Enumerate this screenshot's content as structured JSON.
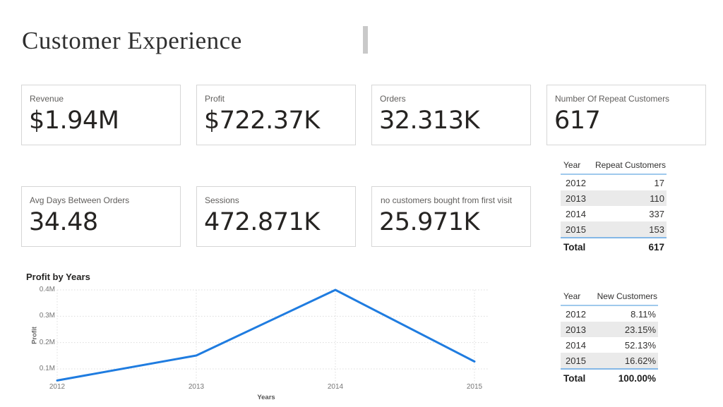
{
  "header": {
    "title": "Customer Experience"
  },
  "kpi_cards": [
    {
      "label": "Revenue",
      "value": "$1.94M"
    },
    {
      "label": "Profit",
      "value": "$722.37K"
    },
    {
      "label": "Orders",
      "value": "32.313K"
    },
    {
      "label": "Number Of Repeat Customers",
      "value": "617"
    },
    {
      "label": "Avg Days Between Orders",
      "value": "34.48"
    },
    {
      "label": "Sessions",
      "value": "472.871K"
    },
    {
      "label": "no customers bought from first visit",
      "value": "25.971K"
    }
  ],
  "repeat_customers_table": {
    "columns": [
      "Year",
      "Repeat Customers"
    ],
    "rows": [
      [
        "2012",
        "17"
      ],
      [
        "2013",
        "110"
      ],
      [
        "2014",
        "337"
      ],
      [
        "2015",
        "153"
      ]
    ],
    "total_label": "Total",
    "total_value": "617"
  },
  "new_customers_table": {
    "columns": [
      "Year",
      "New Customers"
    ],
    "rows": [
      [
        "2012",
        "8.11%"
      ],
      [
        "2013",
        "23.15%"
      ],
      [
        "2014",
        "52.13%"
      ],
      [
        "2015",
        "16.62%"
      ]
    ],
    "total_label": "Total",
    "total_value": "100.00%"
  },
  "chart_data": {
    "type": "line",
    "title": "Profit by Years",
    "xlabel": "Years",
    "ylabel": "Profit",
    "categories": [
      "2012",
      "2013",
      "2014",
      "2015"
    ],
    "series": [
      {
        "name": "Profit",
        "values_M": [
          0.056,
          0.151,
          0.4,
          0.128
        ]
      }
    ],
    "values_M": [
      0.056,
      0.151,
      0.4,
      0.128
    ],
    "yticks": [
      "0.4M",
      "0.3M",
      "0.2M",
      "0.1M"
    ],
    "ylim_M": [
      0.04,
      0.42
    ],
    "grid": "dotted",
    "legend": "none",
    "line_color": "#1f7ce0"
  },
  "colors": {
    "accent_line": "#1f7ce0",
    "table_header_rule": "#9fc9ec",
    "table_total_rule": "#84b7e6",
    "table_alt_row": "#eaeaea",
    "card_border": "#d6d6d6",
    "label_gray": "#605e5c",
    "value_dark": "#252423",
    "title_divider": "#c9c9c9"
  }
}
